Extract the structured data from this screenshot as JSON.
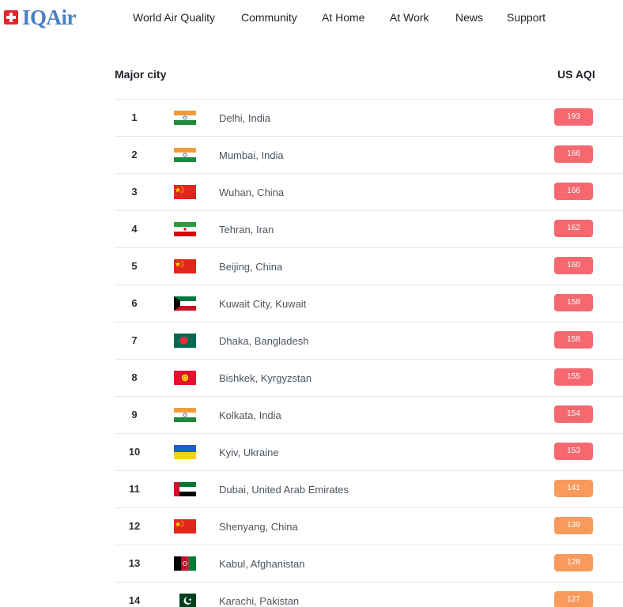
{
  "brand": {
    "name": "IQAir"
  },
  "nav": [
    "World Air Quality",
    "Community",
    "At Home",
    "At Work",
    "News",
    "Support"
  ],
  "table": {
    "col_city": "Major city",
    "col_aqi": "US AQI",
    "rows": [
      {
        "rank": "1",
        "city": "Delhi, India",
        "aqi": "193",
        "flag": "india-flag-icon",
        "color": "#f5686f"
      },
      {
        "rank": "2",
        "city": "Mumbai, India",
        "aqi": "166",
        "flag": "india-flag-icon",
        "color": "#f5686f"
      },
      {
        "rank": "3",
        "city": "Wuhan, China",
        "aqi": "166",
        "flag": "china-flag-icon",
        "color": "#f5686f"
      },
      {
        "rank": "4",
        "city": "Tehran, Iran",
        "aqi": "162",
        "flag": "iran-flag-icon",
        "color": "#f5686f"
      },
      {
        "rank": "5",
        "city": "Beijing, China",
        "aqi": "160",
        "flag": "china-flag-icon",
        "color": "#f5686f"
      },
      {
        "rank": "6",
        "city": "Kuwait City, Kuwait",
        "aqi": "158",
        "flag": "kuwait-flag-icon",
        "color": "#f5686f"
      },
      {
        "rank": "7",
        "city": "Dhaka, Bangladesh",
        "aqi": "158",
        "flag": "bangladesh-flag-icon",
        "color": "#f5686f"
      },
      {
        "rank": "8",
        "city": "Bishkek, Kyrgyzstan",
        "aqi": "155",
        "flag": "kyrgyzstan-flag-icon",
        "color": "#f5686f"
      },
      {
        "rank": "9",
        "city": "Kolkata, India",
        "aqi": "154",
        "flag": "india-flag-icon",
        "color": "#f5686f"
      },
      {
        "rank": "10",
        "city": "Kyiv, Ukraine",
        "aqi": "153",
        "flag": "ukraine-flag-icon",
        "color": "#f5686f"
      },
      {
        "rank": "11",
        "city": "Dubai, United Arab Emirates",
        "aqi": "141",
        "flag": "uae-flag-icon",
        "color": "#f89a5c"
      },
      {
        "rank": "12",
        "city": "Shenyang, China",
        "aqi": "139",
        "flag": "china-flag-icon",
        "color": "#f89a5c"
      },
      {
        "rank": "13",
        "city": "Kabul, Afghanistan",
        "aqi": "128",
        "flag": "afghanistan-flag-icon",
        "color": "#f89a5c"
      },
      {
        "rank": "14",
        "city": "Karachi, Pakistan",
        "aqi": "127",
        "flag": "pakistan-flag-icon",
        "color": "#f89a5c"
      }
    ]
  }
}
